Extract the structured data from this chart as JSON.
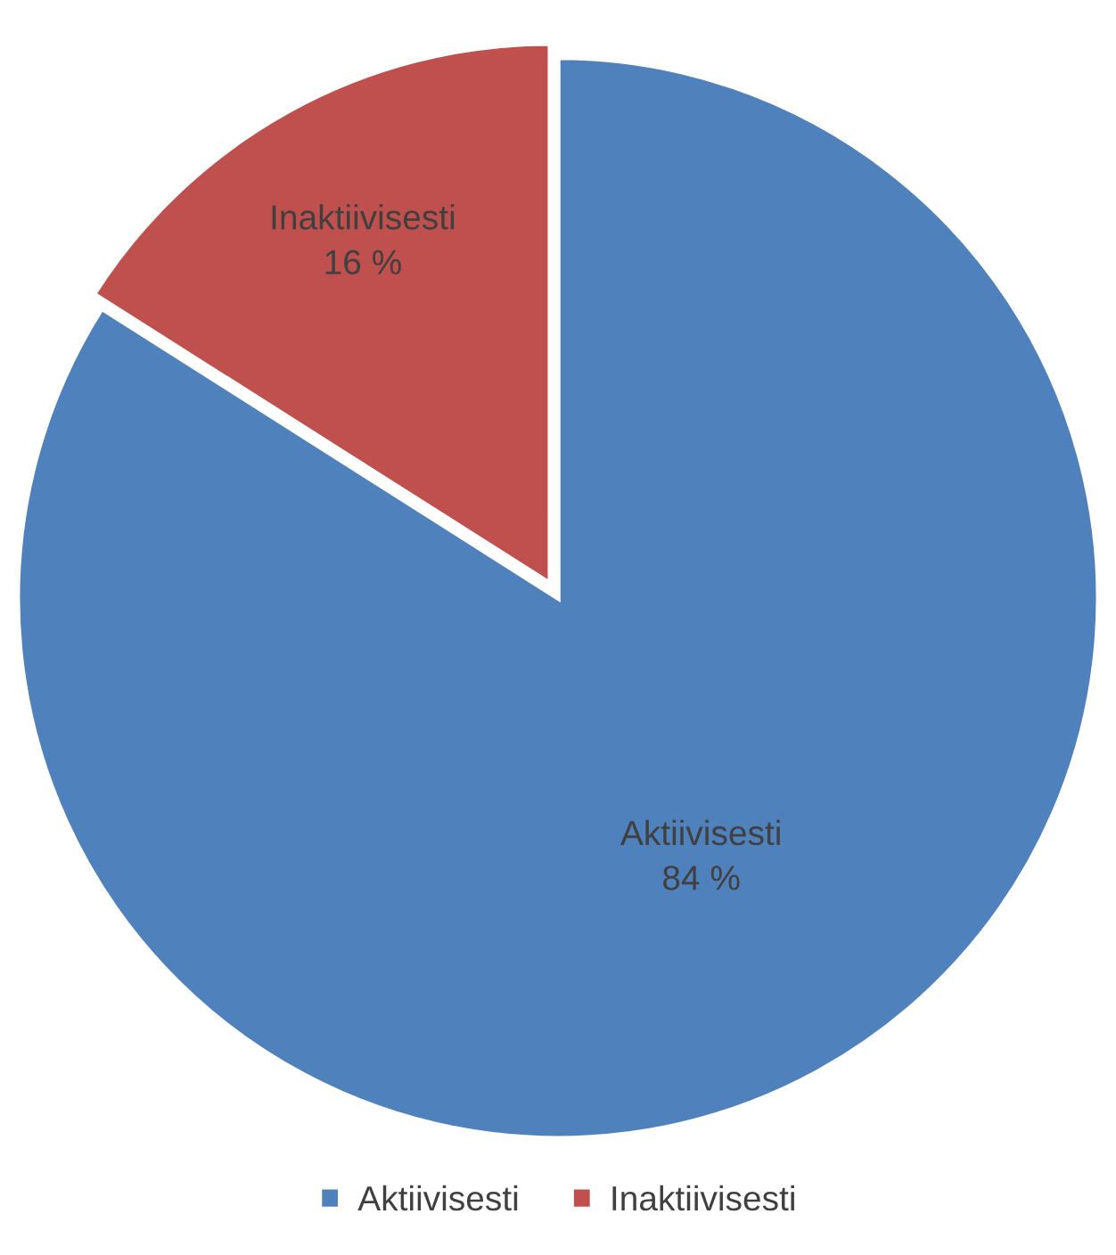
{
  "chart_data": {
    "type": "pie",
    "categories": [
      "Aktiivisesti",
      "Inaktiivisesti"
    ],
    "values": [
      84,
      16
    ],
    "value_labels": [
      "84 %",
      "16 %"
    ],
    "colors": [
      "#4f81bd",
      "#c0504d"
    ],
    "legend": "bottom"
  }
}
